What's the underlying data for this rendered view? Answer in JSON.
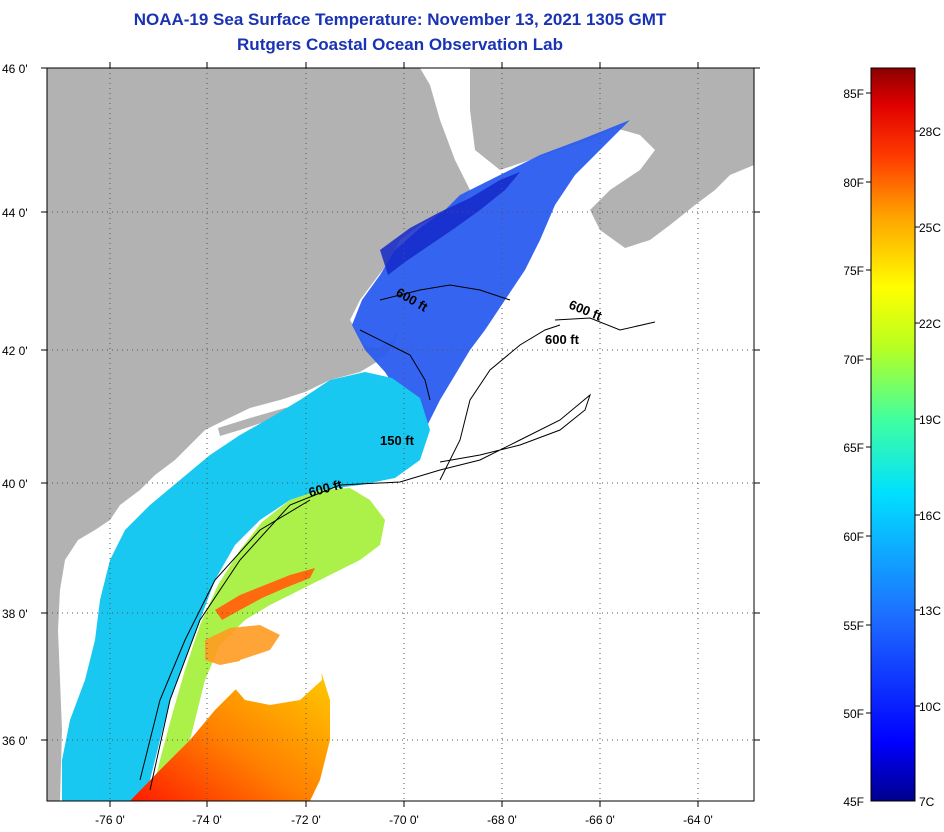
{
  "header": {
    "title": "NOAA-19 Sea Surface Temperature:  November 13, 2021 1305 GMT",
    "subtitle": "Rutgers Coastal Ocean Observation Lab"
  },
  "axes": {
    "lat_labels": [
      "46 0'",
      "44 0'",
      "42 0'",
      "40 0'",
      "38 0'",
      "36 0'"
    ],
    "lon_labels": [
      "-76 0'",
      "-74 0'",
      "-72 0'",
      "-70 0'",
      "-68 0'",
      "-66 0'",
      "-64 0'"
    ]
  },
  "contours": [
    {
      "text": "600 ft"
    },
    {
      "text": "600 ft"
    },
    {
      "text": "600 ft"
    },
    {
      "text": "150 ft"
    },
    {
      "text": "600 ft"
    }
  ],
  "colorbar": {
    "f_labels": [
      "85F",
      "80F",
      "75F",
      "70F",
      "65F",
      "60F",
      "55F",
      "50F",
      "45F"
    ],
    "c_labels": [
      "28C",
      "25C",
      "22C",
      "19C",
      "16C",
      "13C",
      "10C",
      "7C"
    ]
  },
  "colors": {
    "land": "#b2b2b2",
    "title": "#1a33b3",
    "cold": "#00008b",
    "hot": "#8b0000"
  }
}
